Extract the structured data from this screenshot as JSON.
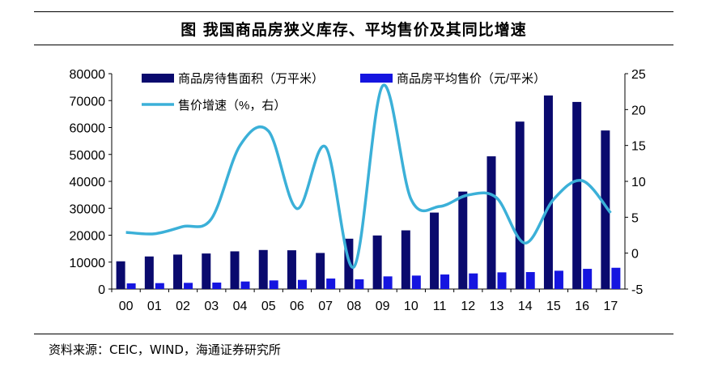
{
  "header": {
    "title": "图  我国商品房狭义库存、平均售价及其同比增速"
  },
  "footer": {
    "source": "资料来源：CEIC，WIND，海通证券研究所"
  },
  "colors": {
    "inventory": "#0a0a6e",
    "price": "#1515e0",
    "growth": "#3bb0d8"
  },
  "chart_data": {
    "type": "bar+line",
    "categories": [
      "00",
      "01",
      "02",
      "03",
      "04",
      "05",
      "06",
      "07",
      "08",
      "09",
      "10",
      "11",
      "12",
      "13",
      "14",
      "15",
      "16",
      "17"
    ],
    "series": [
      {
        "name": "商品房待售面积（万平米）",
        "type": "bar",
        "axis": "left",
        "values": [
          10300,
          12100,
          12800,
          13200,
          14000,
          14500,
          14400,
          13400,
          18700,
          19900,
          21800,
          28400,
          36200,
          49300,
          62200,
          71900,
          69500,
          58900
        ]
      },
      {
        "name": "商品房平均售价（元/平米）",
        "type": "bar",
        "axis": "left",
        "values": [
          2100,
          2200,
          2300,
          2400,
          2800,
          3200,
          3400,
          3900,
          3600,
          4700,
          5000,
          5400,
          5800,
          6200,
          6300,
          6800,
          7500,
          7900
        ]
      },
      {
        "name": "售价增速（%，右）",
        "type": "line",
        "axis": "right",
        "values": [
          2.9,
          2.7,
          3.7,
          4.8,
          15.0,
          17.0,
          6.2,
          14.8,
          -1.9,
          23.3,
          7.5,
          6.5,
          8.1,
          7.7,
          1.4,
          7.5,
          10.1,
          5.6
        ]
      }
    ],
    "y_left": {
      "min": 0,
      "max": 80000,
      "ticks": [
        "0",
        "10000",
        "20000",
        "30000",
        "40000",
        "50000",
        "60000",
        "70000",
        "80000"
      ]
    },
    "y_right": {
      "min": -5,
      "max": 25,
      "ticks": [
        "-5",
        "0",
        "5",
        "10",
        "15",
        "20",
        "25"
      ]
    },
    "legend": [
      "商品房待售面积（万平米）",
      "商品房平均售价（元/平米）",
      "售价增速（%，右）"
    ],
    "legend_placement": "top"
  }
}
